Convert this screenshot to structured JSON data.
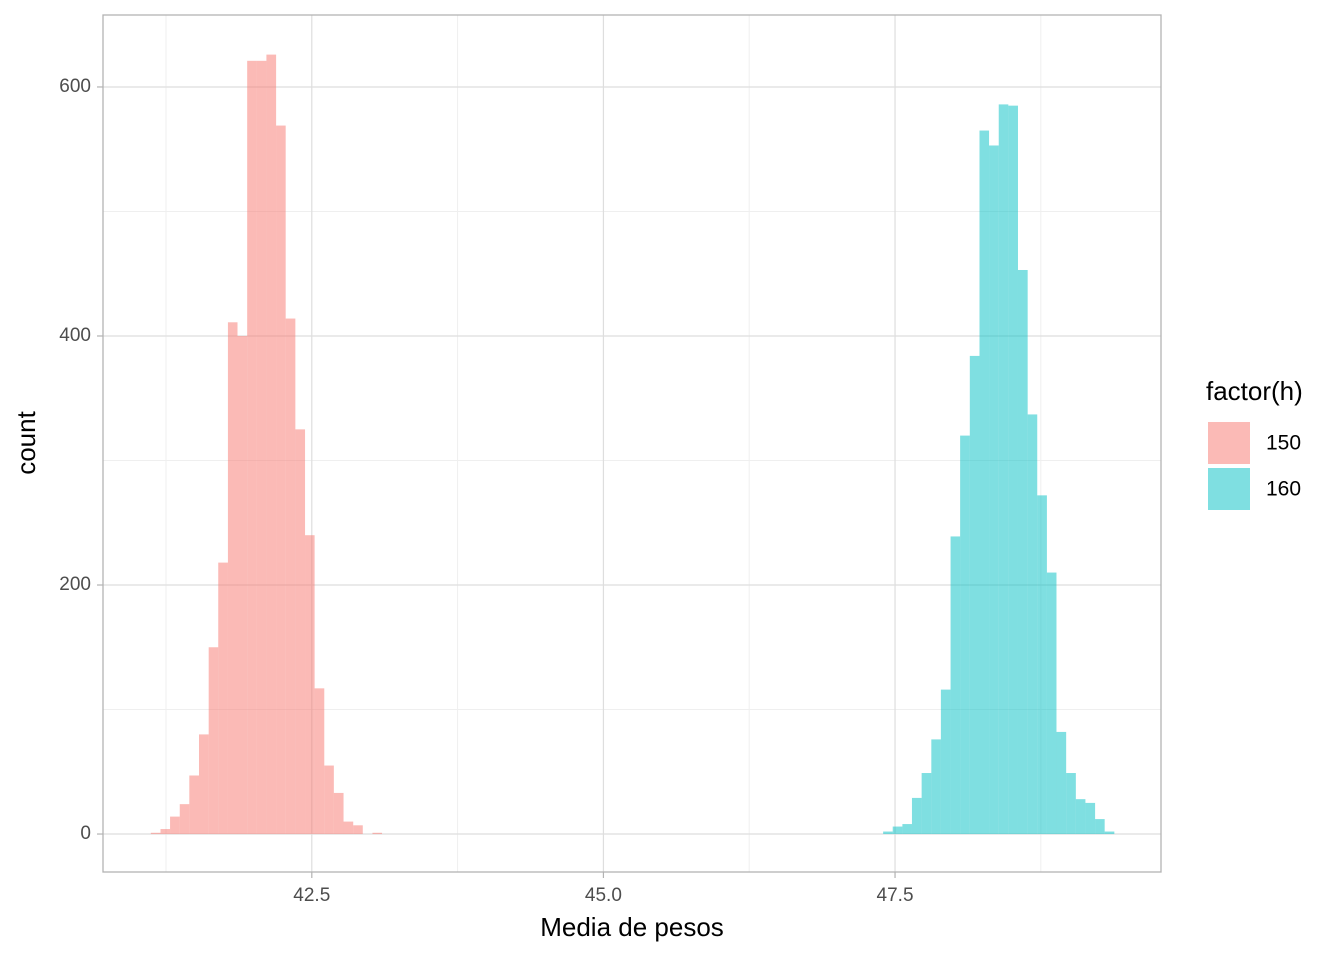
{
  "chart_data": {
    "type": "histogram",
    "xlabel": "Media de pesos",
    "ylabel": "count",
    "legend_title": "factor(h)",
    "legend": "right",
    "bins": [
      41.12,
      41.203,
      41.285,
      41.368,
      41.45,
      41.533,
      41.616,
      41.698,
      41.781,
      41.863,
      41.946,
      42.029,
      42.111,
      42.194,
      42.276,
      42.359,
      42.442,
      42.524,
      42.607,
      42.689,
      42.772,
      42.855,
      42.937,
      43.02,
      43.102,
      43.185,
      43.268,
      43.35,
      43.433,
      43.515,
      43.598,
      43.681,
      43.763,
      43.846,
      43.928,
      44.011,
      44.094,
      44.176,
      44.259,
      44.341,
      44.424,
      44.507,
      44.589,
      44.672,
      44.754,
      44.837,
      44.92,
      45.002,
      45.085,
      45.167,
      45.25,
      45.333,
      45.415,
      45.498,
      45.58,
      45.663,
      45.746,
      45.828,
      45.911,
      45.993,
      46.076,
      46.159,
      46.241,
      46.324,
      46.406,
      46.489,
      46.572,
      46.654,
      46.737,
      46.819,
      46.902,
      46.985,
      47.067,
      47.15,
      47.232,
      47.315,
      47.398,
      47.48,
      47.563,
      47.645,
      47.728,
      47.811,
      47.893,
      47.976,
      48.058,
      48.141,
      48.224,
      48.306,
      48.389,
      48.471,
      48.554,
      48.637,
      48.719,
      48.802,
      48.884,
      48.967,
      49.05,
      49.132,
      49.215,
      49.297,
      49.38
    ],
    "series": [
      {
        "name": "150",
        "color": "#F8766D",
        "values": [
          1,
          4,
          14,
          24,
          47,
          80,
          150,
          218,
          411,
          400,
          621,
          621,
          626,
          569,
          414,
          325,
          240,
          117,
          55,
          33,
          10,
          7,
          0,
          1,
          0,
          0,
          0,
          0,
          0,
          0,
          0,
          0,
          0,
          0,
          0,
          0,
          0,
          0,
          0,
          0,
          0,
          0,
          0,
          0,
          0,
          0,
          0,
          0,
          0,
          0,
          0,
          0,
          0,
          0,
          0,
          0,
          0,
          0,
          0,
          0,
          0,
          0,
          0,
          0,
          0,
          0,
          0,
          0,
          0,
          0,
          0,
          0,
          0,
          0,
          0,
          0,
          0,
          0,
          0,
          0,
          0,
          0,
          0,
          0,
          0,
          0,
          0,
          0,
          0,
          0,
          0,
          0,
          0,
          0,
          0,
          0,
          0,
          0,
          0,
          0
        ]
      },
      {
        "name": "160",
        "color": "#00BFC4",
        "values": [
          0,
          0,
          0,
          0,
          0,
          0,
          0,
          0,
          0,
          0,
          0,
          0,
          0,
          0,
          0,
          0,
          0,
          0,
          0,
          0,
          0,
          0,
          0,
          0,
          0,
          0,
          0,
          0,
          0,
          0,
          0,
          0,
          0,
          0,
          0,
          0,
          0,
          0,
          0,
          0,
          0,
          0,
          0,
          0,
          0,
          0,
          0,
          0,
          0,
          0,
          0,
          0,
          0,
          0,
          0,
          0,
          0,
          0,
          0,
          0,
          0,
          0,
          0,
          0,
          0,
          0,
          0,
          0,
          0,
          0,
          0,
          0,
          0,
          0,
          0,
          0,
          2,
          6,
          8,
          29,
          49,
          76,
          116,
          239,
          320,
          384,
          565,
          553,
          586,
          585,
          453,
          337,
          272,
          210,
          82,
          49,
          28,
          25,
          12,
          2
        ]
      }
    ],
    "alpha": 0.5,
    "xlim": [
      40.71,
      49.78
    ],
    "xticks": [
      42.5,
      {
        "value": 45,
        "label": "45.0"
      },
      47.5
    ],
    "x_minor_ticks": [
      41.25,
      43.75,
      46.25,
      48.75
    ],
    "ylim": [
      -30.5,
      657.8
    ],
    "yticks": [
      0,
      200,
      400,
      600
    ],
    "y_minor_ticks": [
      100,
      300,
      500
    ],
    "grid": true
  }
}
